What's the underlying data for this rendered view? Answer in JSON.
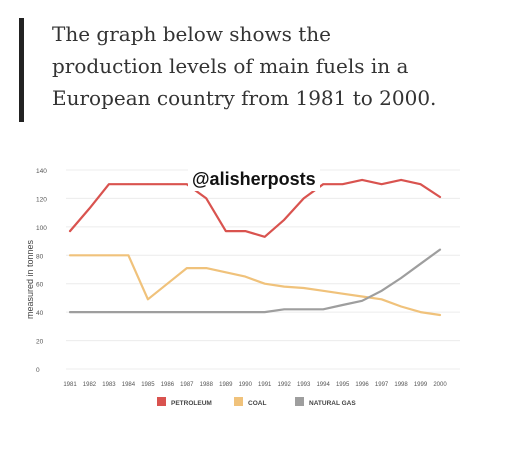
{
  "heading": {
    "lines": [
      "The graph below shows the",
      "production levels of main fuels in a",
      "European country from 1981 to 2000."
    ]
  },
  "watermark": "@alisherposts",
  "chart_data": {
    "type": "line",
    "ylabel": "measured in tonnes",
    "xlabel": "",
    "ylim": [
      0,
      140
    ],
    "yticks": [
      0,
      20,
      40,
      60,
      80,
      100,
      120,
      140
    ],
    "grid": true,
    "legend_position": "bottom",
    "x": [
      "1981",
      "1982",
      "1983",
      "1984",
      "1985",
      "1986",
      "1987",
      "1988",
      "1989",
      "1990",
      "1991",
      "1992",
      "1993",
      "1994",
      "1995",
      "1996",
      "1997",
      "1998",
      "1999",
      "2000"
    ],
    "series": [
      {
        "name": "PETROLEUM",
        "color": "#d9534f",
        "values": [
          97,
          113,
          130,
          130,
          130,
          130,
          130,
          120,
          97,
          97,
          93,
          105,
          120,
          130,
          130,
          133,
          130,
          133,
          130,
          121
        ]
      },
      {
        "name": "COAL",
        "color": "#f0c27b",
        "values": [
          80,
          80,
          80,
          80,
          49,
          60,
          71,
          71,
          68,
          65,
          60,
          58,
          57,
          55,
          53,
          51,
          49,
          44,
          40,
          38
        ]
      },
      {
        "name": "NATURAL GAS",
        "color": "#9e9e9e",
        "values": [
          40,
          40,
          40,
          40,
          40,
          40,
          40,
          40,
          40,
          40,
          40,
          42,
          42,
          42,
          45,
          48,
          55,
          64,
          74,
          84
        ]
      }
    ]
  }
}
